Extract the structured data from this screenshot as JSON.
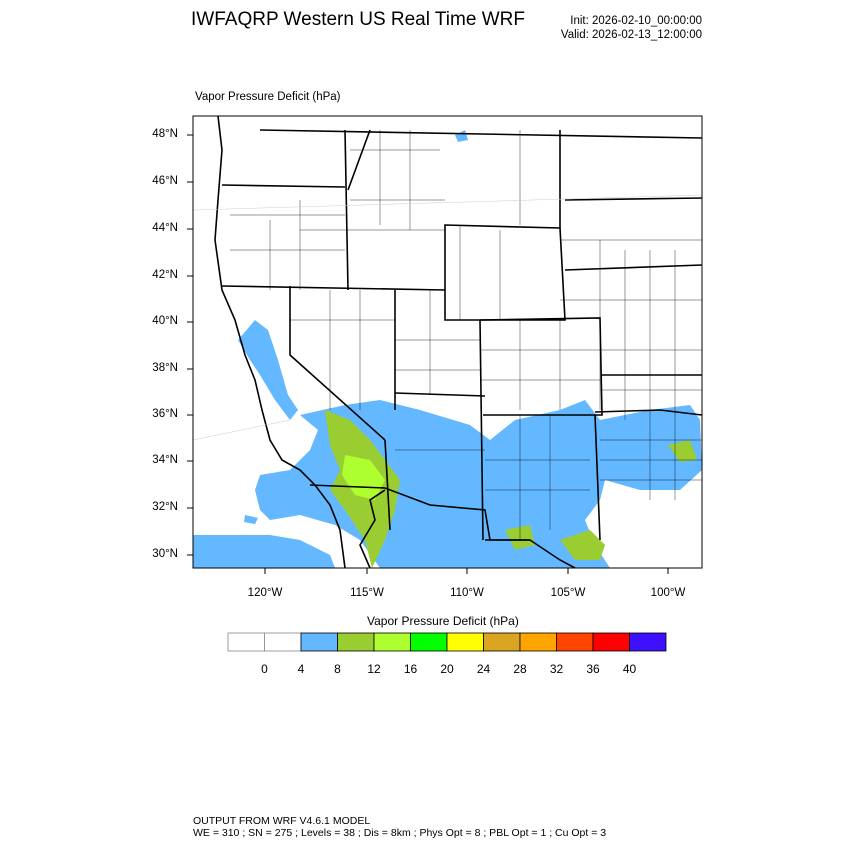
{
  "header": {
    "title": "IWFAQRP Western US Real Time WRF",
    "init": "Init: 2026-02-10_00:00:00",
    "valid": "Valid: 2026-02-13_12:00:00"
  },
  "map": {
    "title": "Vapor Pressure Deficit   (hPa)",
    "lat_labels": [
      "48°N",
      "46°N",
      "44°N",
      "42°N",
      "40°N",
      "38°N",
      "36°N",
      "34°N",
      "32°N",
      "30°N"
    ],
    "lon_labels": [
      "120°W",
      "115°W",
      "110°W",
      "105°W",
      "100°W"
    ]
  },
  "colorbar": {
    "title": "Vapor Pressure Deficit  (hPa)",
    "colors": [
      "#ffffff",
      "#ffffff",
      "#63b8ff",
      "#9acd32",
      "#adff2f",
      "#00ff00",
      "#ffff00",
      "#daa520",
      "#ffa500",
      "#ff4500",
      "#ff0000",
      "#3f0fff"
    ],
    "labels": [
      "0",
      "4",
      "8",
      "12",
      "16",
      "20",
      "24",
      "28",
      "32",
      "36",
      "40"
    ]
  },
  "footer": {
    "line1": "OUTPUT FROM WRF V4.6.1 MODEL",
    "line2": "WE = 310 ; SN = 275 ; Levels = 38 ; Dis = 8km ; Phys Opt = 8 ; PBL Opt = 1 ; Cu Opt = 3"
  }
}
